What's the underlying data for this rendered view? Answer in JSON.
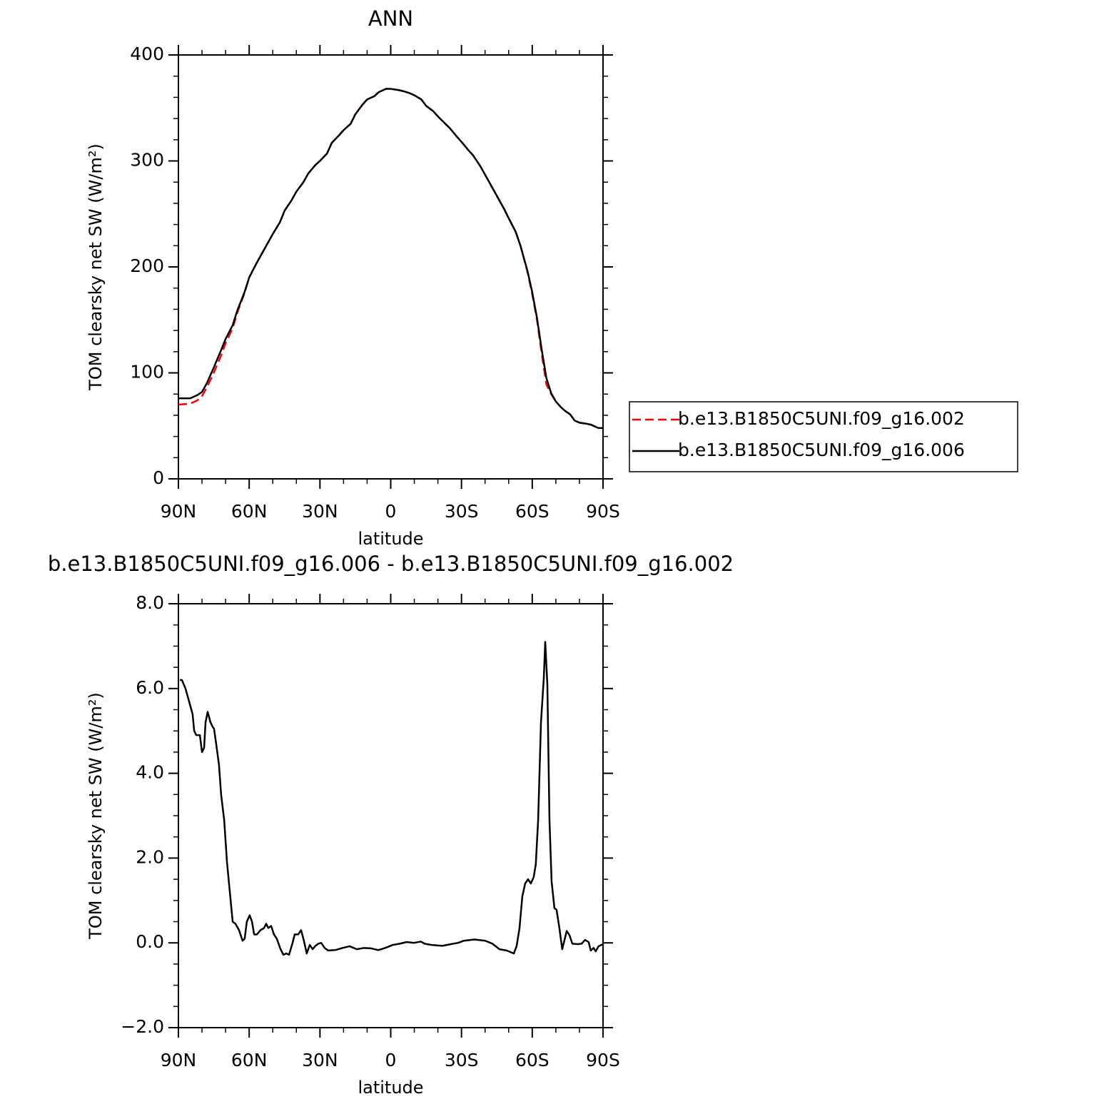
{
  "chart_data": [
    {
      "type": "line",
      "title": "ANN",
      "x_label": "latitude",
      "y_label": "TOM clearsky net SW (W/m²)",
      "x": [
        90,
        85,
        82,
        80,
        78,
        75,
        72,
        70,
        67,
        65,
        62,
        60,
        57,
        55,
        52,
        50,
        47,
        45,
        42,
        40,
        37,
        35,
        32,
        30,
        27,
        25,
        22,
        20,
        17,
        15,
        12,
        10,
        7,
        5,
        2,
        0,
        -3,
        -5,
        -8,
        -10,
        -13,
        -15,
        -18,
        -20,
        -25,
        -28,
        -30,
        -33,
        -35,
        -38,
        -40,
        -43,
        -45,
        -48,
        -50,
        -53,
        -55,
        -58,
        -60,
        -62,
        -64,
        -66,
        -68,
        -70,
        -72,
        -74,
        -76,
        -78,
        -80,
        -83,
        -85,
        -88,
        -90
      ],
      "series": [
        {
          "name": "b.e13.B1850C5UNI.f09_g16.002",
          "color": "#ff0000",
          "line_style": "dashed",
          "values": [
            70,
            71,
            74,
            78,
            86,
            100,
            116,
            128,
            142,
            157,
            175,
            190,
            203,
            211,
            223,
            231,
            242,
            253,
            263,
            271,
            280,
            288,
            296,
            300,
            307,
            317,
            324,
            329,
            335,
            344,
            353,
            358,
            361,
            365,
            368,
            368,
            367,
            366,
            364,
            362,
            358,
            352,
            347,
            342,
            331,
            323,
            318,
            310,
            305,
            295,
            287,
            275,
            267,
            255,
            246,
            233,
            220,
            195,
            174,
            150,
            118,
            89,
            80,
            73,
            68,
            64,
            61,
            55,
            53,
            52,
            51,
            48,
            48
          ]
        },
        {
          "name": "b.e13.B1850C5UNI.f09_g16.006",
          "color": "#000000",
          "line_style": "solid",
          "values": [
            76,
            76,
            79,
            82,
            90,
            105,
            121,
            132,
            145,
            159,
            176,
            190,
            203,
            211,
            223,
            231,
            242,
            253,
            263,
            271,
            280,
            288,
            296,
            300,
            307,
            317,
            324,
            329,
            335,
            344,
            353,
            358,
            361,
            365,
            368,
            368,
            367,
            366,
            364,
            362,
            358,
            352,
            347,
            342,
            331,
            323,
            318,
            310,
            305,
            295,
            287,
            275,
            267,
            255,
            246,
            233,
            220,
            196,
            176,
            152,
            122,
            95,
            81,
            73,
            68,
            64,
            61,
            55,
            53,
            52,
            51,
            48,
            48
          ]
        }
      ],
      "xlim": [
        90,
        -90
      ],
      "xticks": [
        {
          "value": 90,
          "label": "90N"
        },
        {
          "value": 60,
          "label": "60N"
        },
        {
          "value": 30,
          "label": "30N"
        },
        0,
        {
          "value": -30,
          "label": "30S"
        },
        {
          "value": -60,
          "label": "60S"
        },
        {
          "value": -90,
          "label": "90S"
        }
      ],
      "ylim": [
        0,
        400
      ],
      "yticks": [
        0,
        100,
        200,
        300,
        400
      ],
      "legend": "right"
    },
    {
      "type": "line",
      "title": "b.e13.B1850C5UNI.f09_g16.006 - b.e13.B1850C5UNI.f09_g16.002",
      "x_label": "latitude",
      "y_label": "TOM clearsky net SW (W/m²)",
      "x": [
        89.4,
        88.5,
        87,
        85.5,
        84,
        83.3,
        82.4,
        80.9,
        80,
        79.1,
        78.5,
        77.6,
        76.4,
        75.5,
        74.9,
        74,
        72.8,
        71.9,
        70.6,
        69.4,
        68.2,
        67,
        65.8,
        64.3,
        62.8,
        61.9,
        61,
        59.8,
        58.8,
        57.9,
        56.7,
        55.2,
        53.7,
        52.8,
        51.9,
        50.7,
        49.5,
        48.3,
        46.7,
        45.5,
        44.3,
        43.1,
        41.6,
        40.7,
        39.2,
        38,
        36.8,
        35.6,
        34.3,
        33.1,
        31.9,
        30.7,
        29.5,
        28,
        26.5,
        23.5,
        20.4,
        17.4,
        14.4,
        11.4,
        8.3,
        5.3,
        2.3,
        -0.8,
        -3.8,
        -6.8,
        -9.8,
        -12.8,
        -14.4,
        -17.4,
        -21.9,
        -26.5,
        -28.6,
        -31,
        -35.5,
        -40.1,
        -43.1,
        -46.1,
        -49.1,
        -52.2,
        -53.4,
        -54.6,
        -55.8,
        -57,
        -58.2,
        -59.4,
        -60.6,
        -61.5,
        -62.5,
        -63.7,
        -64.9,
        -65.5,
        -66.4,
        -67.3,
        -68.2,
        -69.4,
        -70.3,
        -71.5,
        -72.7,
        -73.6,
        -74.6,
        -75.8,
        -77,
        -79.4,
        -80.9,
        -82.4,
        -83.9,
        -84.8,
        -86,
        -86.9,
        -88.1,
        -90
      ],
      "values": [
        6.2,
        6.2,
        6.0,
        5.7,
        5.4,
        5.0,
        4.9,
        4.9,
        4.5,
        4.6,
        5.2,
        5.45,
        5.2,
        5.1,
        5.05,
        4.7,
        4.2,
        3.5,
        2.9,
        1.9,
        1.2,
        0.5,
        0.45,
        0.3,
        0.05,
        0.1,
        0.5,
        0.65,
        0.5,
        0.2,
        0.2,
        0.3,
        0.35,
        0.45,
        0.35,
        0.4,
        0.2,
        0.1,
        -0.15,
        -0.28,
        -0.25,
        -0.28,
        0.0,
        0.2,
        0.2,
        0.3,
        0.05,
        -0.25,
        -0.05,
        -0.15,
        -0.07,
        -0.02,
        0.0,
        -0.12,
        -0.18,
        -0.17,
        -0.12,
        -0.08,
        -0.15,
        -0.12,
        -0.13,
        -0.17,
        -0.12,
        -0.05,
        -0.02,
        0.02,
        0.0,
        0.03,
        -0.02,
        -0.05,
        -0.07,
        -0.02,
        0.0,
        0.05,
        0.08,
        0.05,
        -0.02,
        -0.15,
        -0.18,
        -0.25,
        -0.07,
        0.35,
        1.1,
        1.4,
        1.5,
        1.4,
        1.55,
        1.85,
        2.9,
        5.2,
        6.25,
        7.1,
        6.1,
        2.9,
        1.45,
        0.82,
        0.78,
        0.35,
        -0.15,
        0.05,
        0.28,
        0.18,
        -0.02,
        -0.03,
        -0.02,
        0.07,
        0.02,
        -0.18,
        -0.12,
        -0.2,
        -0.08,
        -0.03
      ],
      "color": "#000000",
      "xlim": [
        90,
        -90
      ],
      "xticks": [
        {
          "value": 90,
          "label": "90N"
        },
        {
          "value": 60,
          "label": "60N"
        },
        {
          "value": 30,
          "label": "30N"
        },
        0,
        {
          "value": -30,
          "label": "30S"
        },
        {
          "value": -60,
          "label": "60S"
        },
        {
          "value": -90,
          "label": "90S"
        }
      ],
      "ylim": [
        -2,
        8
      ],
      "yticks": [
        {
          "value": -2,
          "label": "−2.0"
        },
        {
          "value": 0,
          "label": "0.0"
        },
        {
          "value": 2,
          "label": "2.0"
        },
        {
          "value": 4,
          "label": "4.0"
        },
        {
          "value": 6,
          "label": "6.0"
        },
        {
          "value": 8,
          "label": "8.0"
        }
      ]
    }
  ]
}
